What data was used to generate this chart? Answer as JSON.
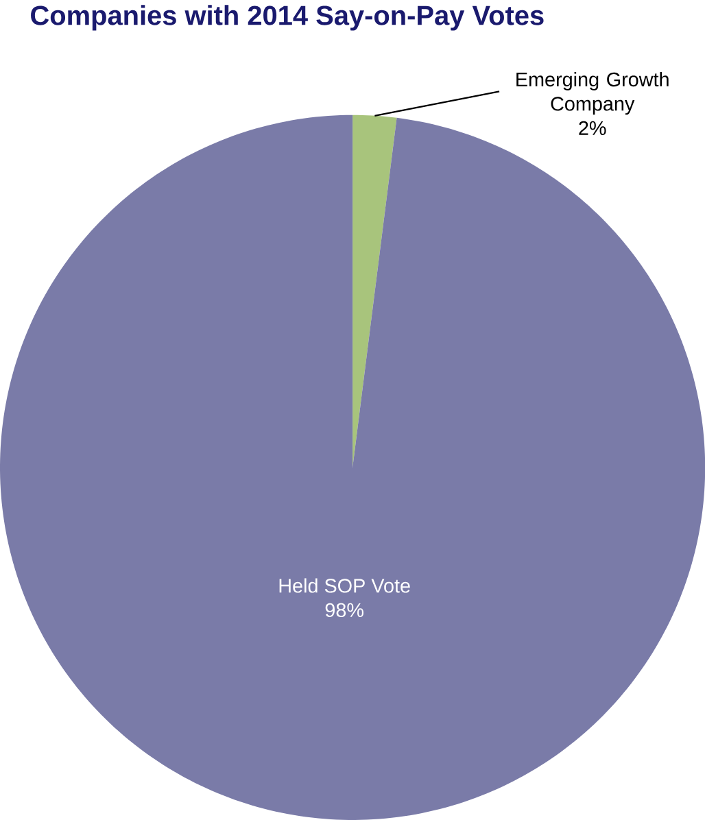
{
  "chart_data": {
    "type": "pie",
    "title": "Companies with 2014 Say-on-Pay Votes",
    "categories": [
      "Emerging Growth Company",
      "Held SOP Vote"
    ],
    "values": [
      2,
      98
    ],
    "colors": [
      "#a8c47c",
      "#7a7ba8"
    ],
    "value_labels": [
      "2%",
      "98%"
    ],
    "legend": false
  }
}
